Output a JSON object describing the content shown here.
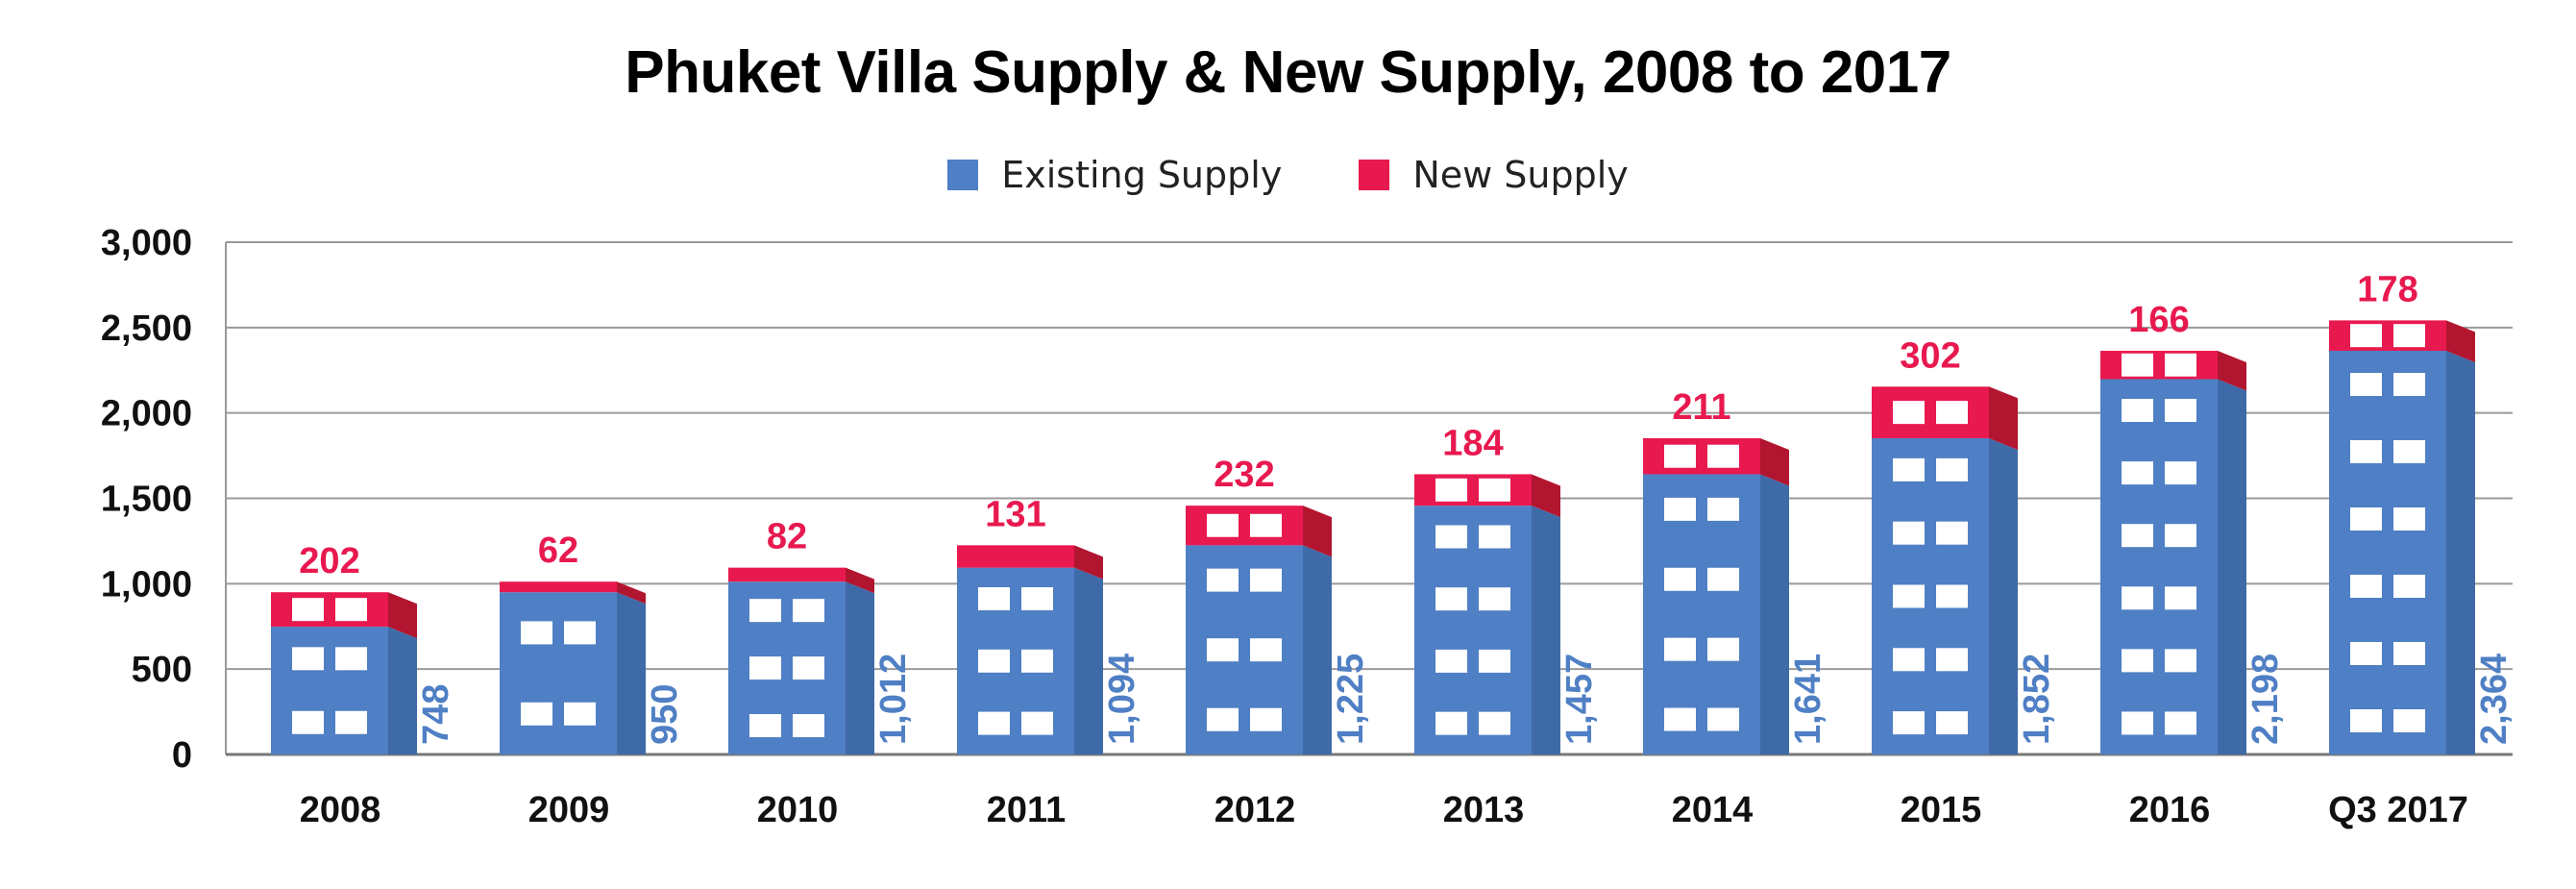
{
  "chart_data": {
    "type": "bar",
    "stacked": true,
    "title": "Phuket Villa Supply & New Supply, 2008 to 2017",
    "xlabel": "",
    "ylabel": "",
    "ylim": [
      0,
      3000
    ],
    "yticks": [
      "0",
      "500",
      "1,000",
      "1,500",
      "2,000",
      "2,500",
      "3,000"
    ],
    "grid": true,
    "legend_position": "top-center",
    "categories": [
      "2008",
      "2009",
      "2010",
      "2011",
      "2012",
      "2013",
      "2014",
      "2015",
      "2016",
      "Q3 2017"
    ],
    "series": [
      {
        "name": "Existing Supply",
        "color": "#4f7fc4",
        "values": [
          748,
          950,
          1012,
          1094,
          1225,
          1457,
          1641,
          1852,
          2198,
          2364
        ],
        "labels": [
          "748",
          "950",
          "1,012",
          "1,094",
          "1,225",
          "1,457",
          "1,641",
          "1,852",
          "2,198",
          "2,364"
        ]
      },
      {
        "name": "New Supply",
        "color": "#e8194f",
        "values": [
          202,
          62,
          82,
          131,
          232,
          184,
          211,
          302,
          166,
          178
        ],
        "labels": [
          "202",
          "62",
          "82",
          "131",
          "232",
          "184",
          "211",
          "302",
          "166",
          "178"
        ]
      }
    ]
  }
}
